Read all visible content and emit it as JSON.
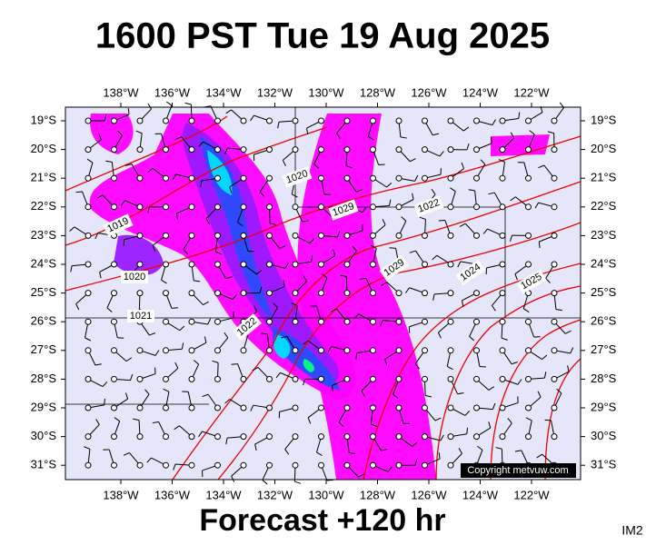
{
  "header": {
    "title": "1600 PST Tue 19 Aug 2025"
  },
  "map": {
    "lon_labels": [
      "138°W",
      "136°W",
      "134°W",
      "132°W",
      "130°W",
      "128°W",
      "126°W",
      "124°W",
      "122°W"
    ],
    "lat_labels": [
      "19°S",
      "20°S",
      "21°S",
      "22°S",
      "23°S",
      "24°S",
      "25°S",
      "26°S",
      "27°S",
      "28°S",
      "29°S",
      "30°S",
      "31°S"
    ],
    "isobar_labels": [
      "1020",
      "1029",
      "1022",
      "1019",
      "1020",
      "1029",
      "1024",
      "1025",
      "1021",
      "1022"
    ],
    "copyright": "Copyright metvuw.com"
  },
  "footer": {
    "forecast": "Forecast +120 hr",
    "code": "IM2"
  }
}
